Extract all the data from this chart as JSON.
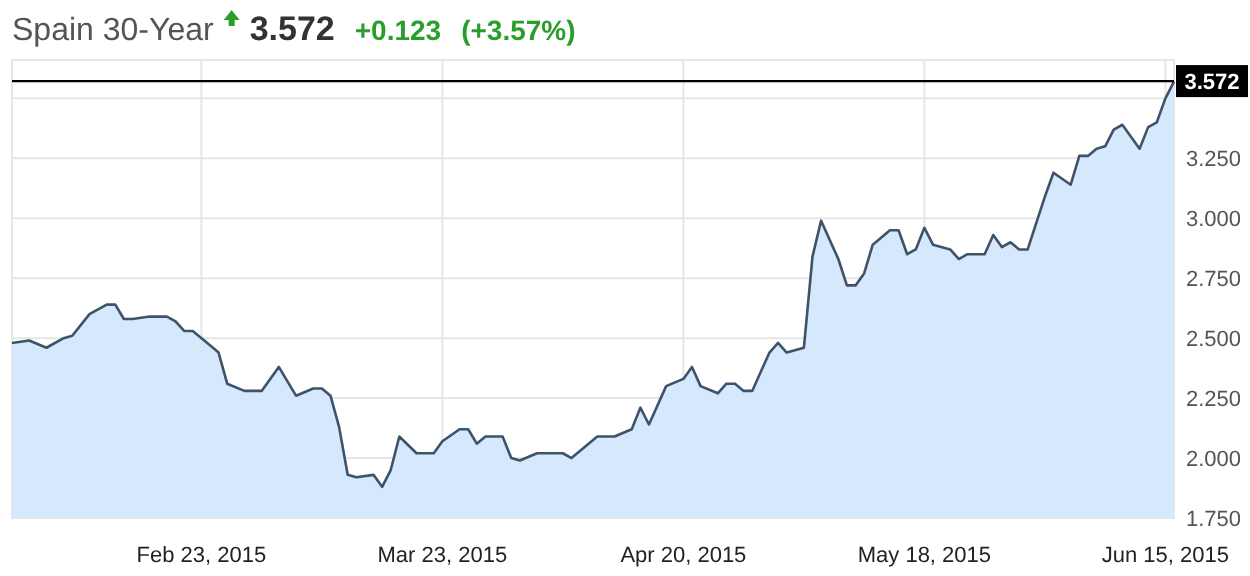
{
  "chart_data": {
    "type": "area",
    "title": "Spain 30-Year",
    "annotations": [
      "3.572",
      "+0.123",
      "(+3.57%)"
    ],
    "x": [
      "2015-02-01",
      "2015-02-03",
      "2015-02-05",
      "2015-02-07",
      "2015-02-08",
      "2015-02-10",
      "2015-02-11",
      "2015-02-12",
      "2015-02-13",
      "2015-02-14",
      "2015-02-15",
      "2015-02-17",
      "2015-02-19",
      "2015-02-20",
      "2015-02-21",
      "2015-02-22",
      "2015-02-24",
      "2015-02-25",
      "2015-02-26",
      "2015-02-28",
      "2015-03-02",
      "2015-03-04",
      "2015-03-05",
      "2015-03-06",
      "2015-03-08",
      "2015-03-09",
      "2015-03-10",
      "2015-03-11",
      "2015-03-12",
      "2015-03-13",
      "2015-03-15",
      "2015-03-16",
      "2015-03-17",
      "2015-03-18",
      "2015-03-20",
      "2015-03-22",
      "2015-03-23",
      "2015-03-25",
      "2015-03-26",
      "2015-03-27",
      "2015-03-28",
      "2015-03-30",
      "2015-03-31",
      "2015-04-01",
      "2015-04-03",
      "2015-04-05",
      "2015-04-06",
      "2015-04-07",
      "2015-04-10",
      "2015-04-12",
      "2015-04-14",
      "2015-04-15",
      "2015-04-16",
      "2015-04-18",
      "2015-04-20",
      "2015-04-21",
      "2015-04-22",
      "2015-04-24",
      "2015-04-25",
      "2015-04-26",
      "2015-04-27",
      "2015-04-28",
      "2015-04-30",
      "2015-05-01",
      "2015-05-02",
      "2015-05-04",
      "2015-05-05",
      "2015-05-06",
      "2015-05-08",
      "2015-05-09",
      "2015-05-10",
      "2015-05-11",
      "2015-05-12",
      "2015-05-14",
      "2015-05-15",
      "2015-05-16",
      "2015-05-17",
      "2015-05-18",
      "2015-05-19",
      "2015-05-21",
      "2015-05-22",
      "2015-05-23",
      "2015-05-25",
      "2015-05-26",
      "2015-05-27",
      "2015-05-28",
      "2015-05-29",
      "2015-05-30",
      "2015-06-01",
      "2015-06-02",
      "2015-06-04",
      "2015-06-05",
      "2015-06-06",
      "2015-06-07",
      "2015-06-08",
      "2015-06-09",
      "2015-06-10",
      "2015-06-12",
      "2015-06-13",
      "2015-06-14",
      "2015-06-15",
      "2015-06-16"
    ],
    "series": [
      {
        "color": "#d6e8fc",
        "values": [
          2.48,
          2.49,
          2.46,
          2.5,
          2.51,
          2.6,
          2.62,
          2.64,
          2.64,
          2.58,
          2.58,
          2.59,
          2.59,
          2.57,
          2.53,
          2.53,
          2.47,
          2.44,
          2.31,
          2.28,
          2.28,
          2.38,
          2.32,
          2.26,
          2.29,
          2.29,
          2.26,
          2.13,
          1.93,
          1.92,
          1.93,
          1.88,
          1.95,
          2.09,
          2.02,
          2.02,
          2.07,
          2.12,
          2.12,
          2.06,
          2.09,
          2.09,
          2.0,
          1.99,
          2.02,
          2.02,
          2.02,
          2.0,
          2.09,
          2.09,
          2.12,
          2.21,
          2.14,
          2.3,
          2.33,
          2.38,
          2.3,
          2.27,
          2.31,
          2.31,
          2.28,
          2.28,
          2.44,
          2.48,
          2.44,
          2.46,
          2.84,
          2.99,
          2.83,
          2.72,
          2.72,
          2.77,
          2.89,
          2.95,
          2.95,
          2.85,
          2.87,
          2.96,
          2.89,
          2.87,
          2.83,
          2.85,
          2.85,
          2.93,
          2.88,
          2.9,
          2.87,
          2.87,
          3.09,
          3.19,
          3.14,
          3.26,
          3.26,
          3.29,
          3.3,
          3.37,
          3.39,
          3.29,
          3.38,
          3.4,
          3.5,
          3.57
        ]
      }
    ],
    "xlim": [
      "2015-02-01",
      "2015-06-16"
    ],
    "xticks": [
      {
        "value": "2015-02-23",
        "label": "Feb 23, 2015"
      },
      {
        "value": "2015-03-23",
        "label": "Mar 23, 2015"
      },
      {
        "value": "2015-04-20",
        "label": "Apr 20, 2015"
      },
      {
        "value": "2015-05-18",
        "label": "May 18, 2015"
      },
      {
        "value": "2015-06-15",
        "label": "Jun 15, 2015"
      }
    ],
    "ylim": [
      1.75,
      3.66
    ],
    "yticks": [
      {
        "value": 1.75,
        "label": "1.750"
      },
      {
        "value": 2,
        "label": "2.000"
      },
      {
        "value": 2.25,
        "label": "2.250"
      },
      {
        "value": 2.5,
        "label": "2.500"
      },
      {
        "value": 2.75,
        "label": "2.750"
      },
      {
        "value": 3,
        "label": "3.000"
      },
      {
        "value": 3.25,
        "label": "3.250"
      },
      {
        "value": 3.5,
        "label": null
      }
    ],
    "ref_lines": [
      {
        "axis": "y",
        "value": 3.572,
        "label": "3.572",
        "color": "#000000"
      }
    ],
    "grid": true
  }
}
